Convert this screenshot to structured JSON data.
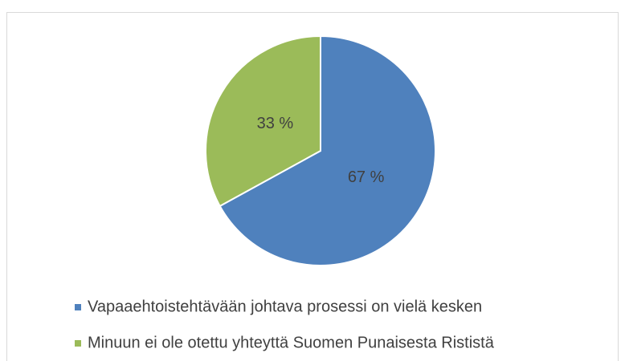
{
  "chart_data": {
    "type": "pie",
    "categories": [
      "Vapaaehtoistehtävään johtava prosessi on vielä kesken",
      "Minuun ei ole otettu yhteyttä Suomen Punaisesta Rististä"
    ],
    "values": [
      67,
      33
    ],
    "value_labels": [
      "67 %",
      "33 %"
    ],
    "colors": [
      "#4f81bd",
      "#9bbb59"
    ],
    "legend": "bottom"
  }
}
